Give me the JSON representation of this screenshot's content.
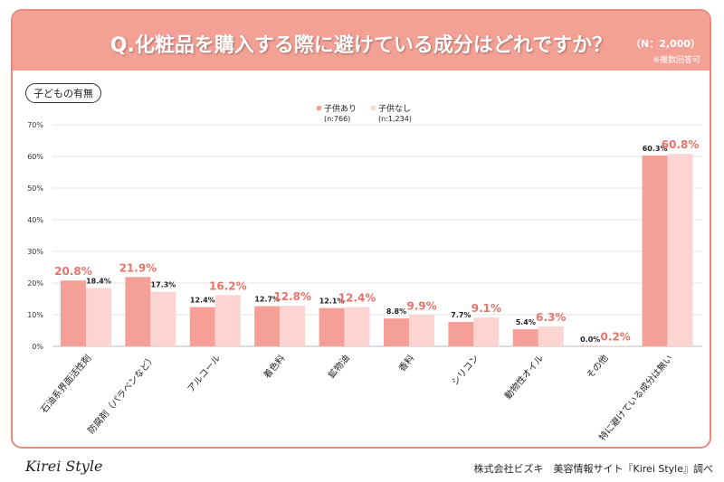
{
  "header": {
    "title": "Q.化粧品を購入する際に避けている成分はどれですか？",
    "n": "（N：2,000）",
    "note": "※複数回答可"
  },
  "tag": "子どもの有無",
  "footer": {
    "logo": "Kirei Style",
    "source": "株式会社ビズキ　美容情報サイト『Kirei Style』調べ"
  },
  "colors": {
    "with_children": "#f4a096",
    "without_children": "#fcd5d2",
    "highlight": "#e8736a",
    "header": "#f4a195"
  },
  "chart_data": {
    "type": "bar",
    "categories": [
      "石油系界面活性剤",
      "防腐剤（パラベンなど）",
      "アルコール",
      "着色料",
      "鉱物油",
      "香料",
      "シリコン",
      "動物性オイル",
      "その他",
      "特に避けている成分は無い"
    ],
    "series": [
      {
        "name": "子供あり",
        "sub": "(n:766)",
        "values": [
          20.8,
          21.9,
          12.4,
          12.7,
          12.1,
          8.8,
          7.7,
          5.4,
          0.0,
          60.3
        ]
      },
      {
        "name": "子供なし",
        "sub": "(n:1,234)",
        "values": [
          18.4,
          17.3,
          16.2,
          12.8,
          12.4,
          9.9,
          9.1,
          6.3,
          0.2,
          60.8
        ]
      }
    ],
    "yticks": [
      "0%",
      "10%",
      "20%",
      "30%",
      "40%",
      "50%",
      "60%",
      "70%"
    ],
    "ylim": [
      0,
      70
    ],
    "legend": "top-center",
    "grid": true
  }
}
